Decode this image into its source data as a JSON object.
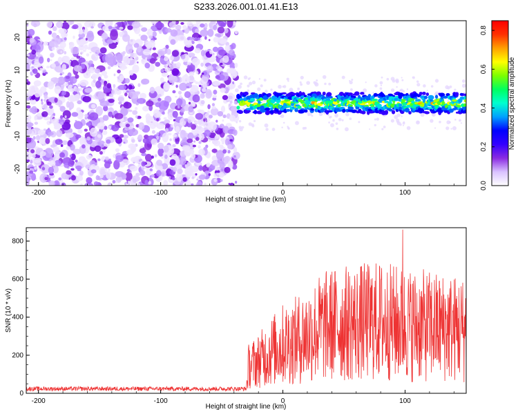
{
  "title": "S233.2026.001.01.41.E13",
  "chart_data": [
    {
      "type": "heatmap",
      "xlabel": "Height of straight line (km)",
      "ylabel": "Frequency (Hz)",
      "xlim": [
        -210,
        150
      ],
      "ylim": [
        -25,
        25
      ],
      "xticks": [
        -200,
        -100,
        0,
        100
      ],
      "yticks": [
        -20,
        -10,
        0,
        10,
        20
      ],
      "noise_region": [
        -210,
        -38
      ],
      "signal_region": [
        -38,
        150
      ],
      "signal_center_hz": 0,
      "signal_halfwidth_hz": 3,
      "colorbar": {
        "label": "Normalized spectral amplitude",
        "range": [
          0,
          0.85
        ],
        "ticks": [
          0.0,
          0.2,
          0.4,
          0.6,
          0.8
        ],
        "colors": [
          "#ffffff",
          "#d9c2ff",
          "#8a2be2",
          "#3300ff",
          "#0000ff",
          "#00a0ff",
          "#00ffd0",
          "#00ff60",
          "#7cff00",
          "#ffff00",
          "#ffa000",
          "#ff3000",
          "#ff0000"
        ]
      }
    },
    {
      "type": "line",
      "xlabel": "Height of straight line (km)",
      "ylabel": "SNR (10 * v/v)",
      "xlim": [
        -210,
        150
      ],
      "ylim": [
        0,
        870
      ],
      "xticks": [
        -200,
        -100,
        0,
        100
      ],
      "yticks": [
        0,
        200,
        400,
        600,
        800
      ],
      "color": "#ee3333",
      "noise_level": 25,
      "envelope": [
        [
          -210,
          25
        ],
        [
          -30,
          25
        ],
        [
          -28,
          150
        ],
        [
          -20,
          180
        ],
        [
          -10,
          230
        ],
        [
          0,
          270
        ],
        [
          10,
          290
        ],
        [
          20,
          320
        ],
        [
          30,
          360
        ],
        [
          40,
          380
        ],
        [
          60,
          390
        ],
        [
          80,
          400
        ],
        [
          100,
          380
        ],
        [
          120,
          370
        ],
        [
          140,
          360
        ],
        [
          150,
          350
        ]
      ],
      "peak": [
        98,
        860
      ]
    }
  ]
}
